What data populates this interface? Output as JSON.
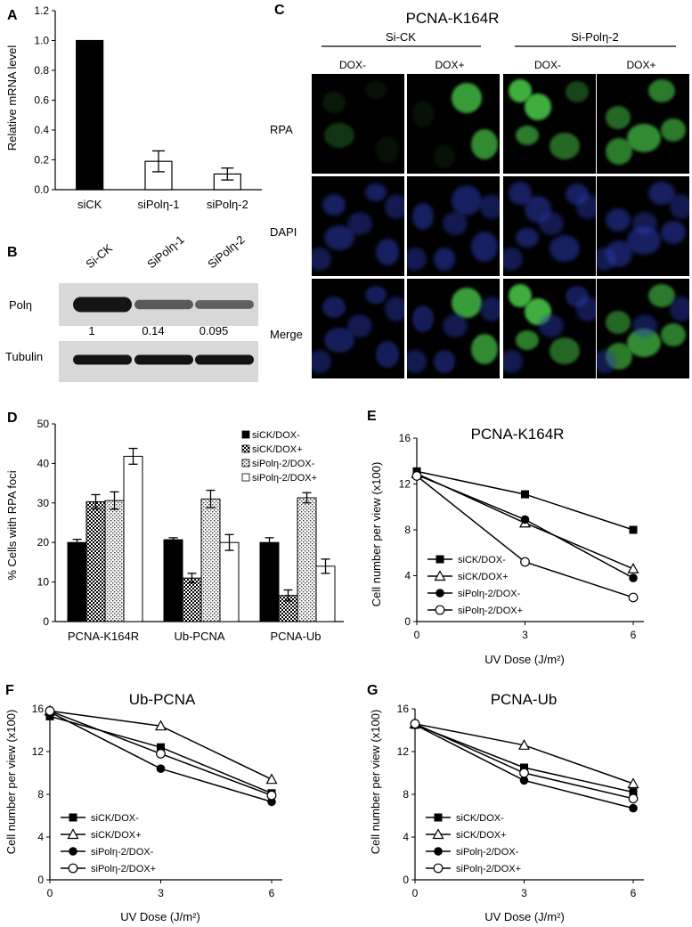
{
  "colors": {
    "green": "#3fae3f",
    "blue": "#2a3bb0",
    "black": "#000000",
    "wbBand": "#141414",
    "wbBg": "#d8d8d8"
  },
  "panelA": {
    "letter": "A",
    "chart_data": {
      "type": "bar",
      "categories": [
        "siCK",
        "siPolη-1",
        "siPolη-2"
      ],
      "values": [
        1.0,
        0.19,
        0.105
      ],
      "errors": [
        0,
        0.07,
        0.04
      ],
      "fills": [
        "black",
        "white",
        "white"
      ],
      "ylabel": "Relative mRNA level",
      "ylim": [
        0,
        1.2
      ],
      "yticks": [
        "0.0",
        "0.2",
        "0.4",
        "0.6",
        "0.8",
        "1.0",
        "1.2"
      ]
    }
  },
  "panelB": {
    "letter": "B",
    "lanes": [
      "Si-CK",
      "SiPolη-1",
      "SiPolη-2"
    ],
    "rows": [
      {
        "label": "Polη",
        "intensity": [
          1.0,
          0.45,
          0.4
        ]
      },
      {
        "label": "Tubulin",
        "intensity": [
          1.0,
          1.0,
          1.0
        ]
      }
    ],
    "quant": [
      "1",
      "0.14",
      "0.095"
    ]
  },
  "panelC": {
    "letter": "C",
    "title": "PCNA-K164R",
    "groups": [
      "Si-CK",
      "Si-Polη-2"
    ],
    "conditions": [
      "DOX-",
      "DOX+",
      "DOX-",
      "DOX+"
    ],
    "rows": [
      "RPA",
      "DAPI",
      "Merge"
    ]
  },
  "panelD": {
    "letter": "D",
    "chart_data": {
      "type": "bar",
      "categories": [
        "PCNA-K164R",
        "Ub-PCNA",
        "PCNA-Ub"
      ],
      "series": [
        {
          "name": "siCK/DOX-",
          "values": [
            20,
            20.7,
            20
          ],
          "errors": [
            0.8,
            0.5,
            1.2
          ],
          "pattern": "solid"
        },
        {
          "name": "siCK/DOX+",
          "values": [
            30.3,
            11,
            6.6
          ],
          "errors": [
            1.8,
            1.2,
            1.4
          ],
          "pattern": "checker"
        },
        {
          "name": "siPolη-2/DOX-",
          "values": [
            30.6,
            31,
            31.3
          ],
          "errors": [
            2.2,
            2.2,
            1.3
          ],
          "pattern": "dots"
        },
        {
          "name": "siPolη-2/DOX+",
          "values": [
            41.8,
            20,
            14
          ],
          "errors": [
            2,
            2,
            1.8
          ],
          "pattern": "white"
        }
      ],
      "ylabel": "% Cells with RPA foci",
      "ylim": [
        0,
        50
      ],
      "yticks": [
        "0",
        "10",
        "20",
        "30",
        "40",
        "50"
      ],
      "legend": "top-right"
    }
  },
  "lineE": {
    "letter": "E",
    "chart_data": {
      "type": "line",
      "title": "PCNA-K164R",
      "x": [
        0,
        3,
        6
      ],
      "series": [
        {
          "name": "siCK/DOX-",
          "values": [
            13.1,
            11.1,
            8.0
          ],
          "marker": "square"
        },
        {
          "name": "siCK/DOX+",
          "values": [
            12.9,
            8.6,
            4.6
          ],
          "marker": "triangle"
        },
        {
          "name": "siPolη-2/DOX-",
          "values": [
            12.8,
            8.9,
            3.8
          ],
          "marker": "circle"
        },
        {
          "name": "siPolη-2/DOX+",
          "values": [
            12.7,
            5.2,
            2.1
          ],
          "marker": "open-circle"
        }
      ],
      "xlabel": "UV Dose (J/m²)",
      "ylabel": "Cell number per view (x100)",
      "ylim": [
        0,
        16
      ],
      "xticks": [
        "0",
        "3",
        "6"
      ],
      "yticks": [
        "0",
        "4",
        "8",
        "12",
        "16"
      ],
      "legend": "bottom-left"
    }
  },
  "lineF": {
    "letter": "F",
    "chart_data": {
      "type": "line",
      "title": "Ub-PCNA",
      "x": [
        0,
        3,
        6
      ],
      "series": [
        {
          "name": "siCK/DOX-",
          "values": [
            15.3,
            12.4,
            8.1
          ],
          "marker": "square"
        },
        {
          "name": "siCK/DOX+",
          "values": [
            15.8,
            14.4,
            9.4
          ],
          "marker": "triangle"
        },
        {
          "name": "siPolη-2/DOX-",
          "values": [
            15.7,
            10.4,
            7.3
          ],
          "marker": "circle"
        },
        {
          "name": "siPolη-2/DOX+",
          "values": [
            15.8,
            11.8,
            7.9
          ],
          "marker": "open-circle"
        }
      ],
      "xlabel": "UV Dose (J/m²)",
      "ylabel": "Cell number per view (x100)",
      "ylim": [
        0,
        16
      ],
      "xticks": [
        "0",
        "3",
        "6"
      ],
      "yticks": [
        "0",
        "4",
        "8",
        "12",
        "16"
      ],
      "legend": "bottom-left"
    }
  },
  "lineG": {
    "letter": "G",
    "chart_data": {
      "type": "line",
      "title": "PCNA-Ub",
      "x": [
        0,
        3,
        6
      ],
      "series": [
        {
          "name": "siCK/DOX-",
          "values": [
            14.5,
            10.5,
            8.2
          ],
          "marker": "square"
        },
        {
          "name": "siCK/DOX+",
          "values": [
            14.6,
            12.6,
            9.0
          ],
          "marker": "triangle"
        },
        {
          "name": "siPolη-2/DOX-",
          "values": [
            14.5,
            9.3,
            6.7
          ],
          "marker": "circle"
        },
        {
          "name": "siPolη-2/DOX+",
          "values": [
            14.6,
            10.0,
            7.6
          ],
          "marker": "open-circle"
        }
      ],
      "xlabel": "UV Dose (J/m²)",
      "ylabel": "Cell number per view (x100)",
      "ylim": [
        0,
        16
      ],
      "xticks": [
        "0",
        "3",
        "6"
      ],
      "yticks": [
        "0",
        "4",
        "8",
        "12",
        "16"
      ],
      "legend": "bottom-left"
    }
  }
}
